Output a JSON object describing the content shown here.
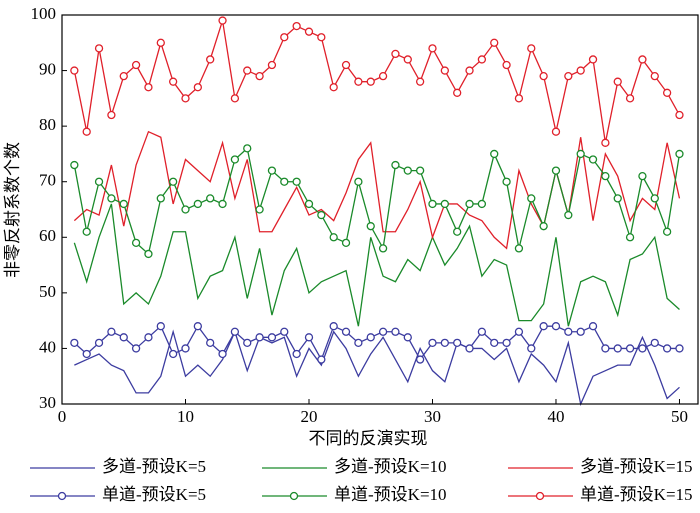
{
  "chart_data": {
    "type": "line",
    "xlabel": "不同的反演实现",
    "ylabel": "非零反射系数个数",
    "x": [
      1,
      2,
      3,
      4,
      5,
      6,
      7,
      8,
      9,
      10,
      11,
      12,
      13,
      14,
      15,
      16,
      17,
      18,
      19,
      20,
      21,
      22,
      23,
      24,
      25,
      26,
      27,
      28,
      29,
      30,
      31,
      32,
      33,
      34,
      35,
      36,
      37,
      38,
      39,
      40,
      41,
      42,
      43,
      44,
      45,
      46,
      47,
      48,
      49,
      50
    ],
    "xlim": [
      0,
      51.5
    ],
    "xticks": [
      0,
      10,
      20,
      30,
      40,
      50
    ],
    "ylim": [
      30,
      100
    ],
    "yticks": [
      30,
      40,
      50,
      60,
      70,
      80,
      90,
      100
    ],
    "series": [
      {
        "name": "多道-预设K=5",
        "color": "#3c3ca0",
        "marker": "none",
        "values": [
          37,
          38,
          39,
          37,
          36,
          32,
          32,
          35,
          43,
          35,
          37,
          35,
          38,
          43,
          36,
          42,
          41,
          42,
          35,
          40,
          37,
          43,
          40,
          35,
          39,
          42,
          38,
          34,
          40,
          36,
          34,
          41,
          40,
          40,
          38,
          40,
          34,
          39,
          37,
          34,
          41,
          30,
          35,
          36,
          37,
          37,
          42,
          37,
          31,
          33
        ]
      },
      {
        "name": "多道-预设K=10",
        "color": "#1a8a2a",
        "marker": "none",
        "values": [
          59,
          52,
          60,
          66,
          48,
          50,
          48,
          53,
          61,
          61,
          49,
          53,
          54,
          60,
          49,
          58,
          46,
          54,
          58,
          50,
          52,
          53,
          54,
          44,
          60,
          53,
          52,
          56,
          54,
          60,
          55,
          58,
          62,
          53,
          56,
          55,
          45,
          45,
          48,
          60,
          44,
          52,
          53,
          52,
          46,
          56,
          57,
          60,
          49,
          47
        ]
      },
      {
        "name": "多道-预设K=15",
        "color": "#e0202a",
        "marker": "none",
        "values": [
          63,
          65,
          64,
          73,
          62,
          73,
          79,
          78,
          66,
          74,
          72,
          70,
          77,
          67,
          74,
          61,
          61,
          65,
          69,
          64,
          65,
          63,
          68,
          74,
          77,
          61,
          61,
          65,
          70,
          60,
          66,
          66,
          64,
          63,
          60,
          58,
          72,
          66,
          62,
          72,
          64,
          78,
          63,
          75,
          71,
          63,
          67,
          65,
          77,
          67
        ]
      },
      {
        "name": "单道-预设K=5",
        "color": "#3c3ca0",
        "marker": "circle",
        "values": [
          41,
          39,
          41,
          43,
          42,
          40,
          42,
          44,
          39,
          40,
          44,
          41,
          39,
          43,
          41,
          42,
          42,
          43,
          39,
          42,
          38,
          44,
          43,
          41,
          42,
          43,
          43,
          42,
          38,
          41,
          41,
          41,
          40,
          43,
          41,
          41,
          43,
          40,
          44,
          44,
          43,
          43,
          44,
          40,
          40,
          40,
          40,
          41,
          40,
          40
        ]
      },
      {
        "name": "单道-预设K=10",
        "color": "#1a8a2a",
        "marker": "circle",
        "values": [
          73,
          61,
          70,
          67,
          66,
          59,
          57,
          67,
          70,
          65,
          66,
          67,
          66,
          74,
          76,
          65,
          72,
          70,
          70,
          66,
          64,
          60,
          59,
          70,
          62,
          58,
          73,
          72,
          72,
          66,
          66,
          61,
          66,
          66,
          75,
          70,
          58,
          67,
          62,
          72,
          64,
          75,
          74,
          71,
          67,
          60,
          71,
          67,
          61,
          75
        ]
      },
      {
        "name": "单道-预设K=15",
        "color": "#e0202a",
        "marker": "circle",
        "values": [
          90,
          79,
          94,
          82,
          89,
          91,
          87,
          95,
          88,
          85,
          87,
          92,
          99,
          85,
          90,
          89,
          91,
          96,
          98,
          97,
          96,
          87,
          91,
          88,
          88,
          89,
          93,
          92,
          88,
          94,
          90,
          86,
          90,
          92,
          95,
          91,
          85,
          94,
          89,
          79,
          89,
          90,
          92,
          77,
          88,
          85,
          92,
          89,
          86,
          82
        ]
      }
    ]
  }
}
